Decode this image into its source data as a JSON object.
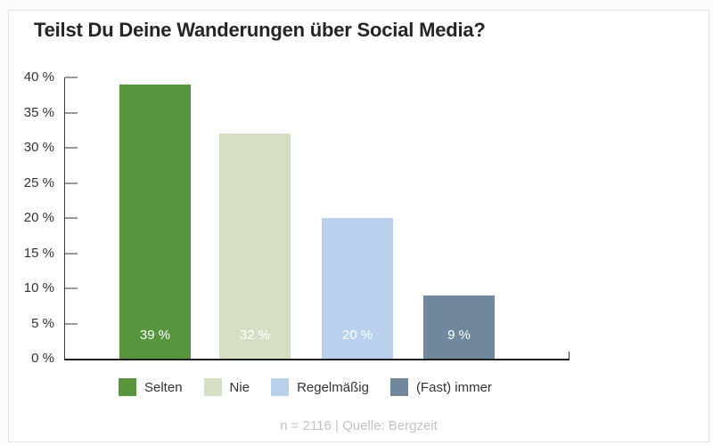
{
  "title": "Teilst Du Deine Wanderungen über Social Media?",
  "footer": "n = 2116 | Quelle: Bergzeit",
  "colors": {
    "selten": "#57953e",
    "nie": "#d4dfc3",
    "regelmaessig": "#b9d1ec",
    "fast_immer": "#71879d",
    "axis": "#3c3c3c",
    "tick": "#9a9a9a",
    "value_label": "#ffffff"
  },
  "chart_data": {
    "type": "bar",
    "title": "Teilst Du Deine Wanderungen über Social Media?",
    "categories": [
      "Selten",
      "Nie",
      "Regelmäßig",
      "(Fast) immer"
    ],
    "values": [
      39,
      32,
      20,
      9
    ],
    "value_labels": [
      "39 %",
      "32 %",
      "20 %",
      "9 %"
    ],
    "bar_colors": [
      "#57953e",
      "#d4dfc3",
      "#b9d1ec",
      "#71879d"
    ],
    "xlabel": "",
    "ylabel": "",
    "ylim": [
      0,
      40
    ],
    "y_ticks": [
      {
        "value": 40,
        "label": "40 %"
      },
      {
        "value": 35,
        "label": "35 %"
      },
      {
        "value": 30,
        "label": "30 %"
      },
      {
        "value": 25,
        "label": "25 %"
      },
      {
        "value": 20,
        "label": "20 %"
      },
      {
        "value": 15,
        "label": "15 %"
      },
      {
        "value": 10,
        "label": "10 %"
      },
      {
        "value": 5,
        "label": "5 %"
      },
      {
        "value": 0,
        "label": "0 %"
      }
    ],
    "grid": false,
    "legend_position": "bottom",
    "legend": [
      {
        "label": "Selten",
        "color": "#57953e"
      },
      {
        "label": "Nie",
        "color": "#d4dfc3"
      },
      {
        "label": "Regelmäßig",
        "color": "#b9d1ec"
      },
      {
        "label": "(Fast) immer",
        "color": "#71879d"
      }
    ],
    "source_note": "n = 2116 | Quelle: Bergzeit"
  }
}
